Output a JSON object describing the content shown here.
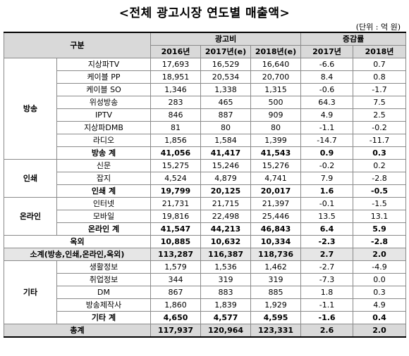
{
  "title": "<전체 광고시장 연도별 매출액>",
  "unit": "(단위 : 억 원)",
  "header": {
    "category": "구분",
    "ad_cost": "광고비",
    "growth": "증감률",
    "years": [
      "2016년",
      "2017년(e)",
      "2018년(e)"
    ],
    "growth_years": [
      "2017년",
      "2018년"
    ]
  },
  "groups": {
    "broadcast": {
      "name": "방송",
      "rows": [
        {
          "item": "지상파TV",
          "v2016": "17,693",
          "v2017": "16,529",
          "v2018": "16,640",
          "g2017": "-6.6",
          "g2018": "0.7"
        },
        {
          "item": "케이블 PP",
          "v2016": "18,951",
          "v2017": "20,534",
          "v2018": "20,700",
          "g2017": "8.4",
          "g2018": "0.8"
        },
        {
          "item": "케이블 SO",
          "v2016": "1,346",
          "v2017": "1,338",
          "v2018": "1,315",
          "g2017": "-0.6",
          "g2018": "-1.7"
        },
        {
          "item": "위성방송",
          "v2016": "283",
          "v2017": "465",
          "v2018": "500",
          "g2017": "64.3",
          "g2018": "7.5"
        },
        {
          "item": "IPTV",
          "v2016": "846",
          "v2017": "887",
          "v2018": "909",
          "g2017": "4.9",
          "g2018": "2.5"
        },
        {
          "item": "지상파DMB",
          "v2016": "81",
          "v2017": "80",
          "v2018": "80",
          "g2017": "-1.1",
          "g2018": "-0.2"
        },
        {
          "item": "라디오",
          "v2016": "1,856",
          "v2017": "1,584",
          "v2018": "1,399",
          "g2017": "-14.7",
          "g2018": "-11.7"
        }
      ],
      "subtotal": {
        "item": "방송 계",
        "v2016": "41,056",
        "v2017": "41,417",
        "v2018": "41,543",
        "g2017": "0.9",
        "g2018": "0.3"
      }
    },
    "print": {
      "name": "인쇄",
      "rows": [
        {
          "item": "신문",
          "v2016": "15,275",
          "v2017": "15,246",
          "v2018": "15,276",
          "g2017": "-0.2",
          "g2018": "0.2"
        },
        {
          "item": "잡지",
          "v2016": "4,524",
          "v2017": "4,879",
          "v2018": "4,741",
          "g2017": "7.9",
          "g2018": "-2.8"
        }
      ],
      "subtotal": {
        "item": "인쇄 계",
        "v2016": "19,799",
        "v2017": "20,125",
        "v2018": "20,017",
        "g2017": "1.6",
        "g2018": "-0.5"
      }
    },
    "online": {
      "name": "온라인",
      "rows": [
        {
          "item": "인터넷",
          "v2016": "21,731",
          "v2017": "21,715",
          "v2018": "21,397",
          "g2017": "-0.1",
          "g2018": "-1.5"
        },
        {
          "item": "모바일",
          "v2016": "19,816",
          "v2017": "22,498",
          "v2018": "25,446",
          "g2017": "13.5",
          "g2018": "13.1"
        }
      ],
      "subtotal": {
        "item": "온라인 계",
        "v2016": "41,547",
        "v2017": "44,213",
        "v2018": "46,843",
        "g2017": "6.4",
        "g2018": "5.9"
      }
    },
    "outdoor": {
      "name": "옥외",
      "v2016": "10,885",
      "v2017": "10,632",
      "v2018": "10,334",
      "g2017": "-2.3",
      "g2018": "-2.8"
    },
    "subtotal_all": {
      "name": "소계(방송,인쇄,온라인,옥외)",
      "v2016": "113,287",
      "v2017": "116,387",
      "v2018": "118,736",
      "g2017": "2.7",
      "g2018": "2.0"
    },
    "other": {
      "name": "기타",
      "rows": [
        {
          "item": "생활정보",
          "v2016": "1,579",
          "v2017": "1,536",
          "v2018": "1,462",
          "g2017": "-2.7",
          "g2018": "-4.9"
        },
        {
          "item": "취업정보",
          "v2016": "344",
          "v2017": "319",
          "v2018": "319",
          "g2017": "-7.3",
          "g2018": "0.0"
        },
        {
          "item": "DM",
          "v2016": "867",
          "v2017": "883",
          "v2018": "885",
          "g2017": "1.8",
          "g2018": "0.3"
        },
        {
          "item": "방송제작사",
          "v2016": "1,860",
          "v2017": "1,839",
          "v2018": "1,929",
          "g2017": "-1.1",
          "g2018": "4.9"
        }
      ],
      "subtotal": {
        "item": "기타 계",
        "v2016": "4,650",
        "v2017": "4,577",
        "v2018": "4,595",
        "g2017": "-1.6",
        "g2018": "0.4"
      }
    },
    "total": {
      "name": "총계",
      "v2016": "117,937",
      "v2017": "120,964",
      "v2018": "123,331",
      "g2017": "2.6",
      "g2018": "2.0"
    }
  }
}
